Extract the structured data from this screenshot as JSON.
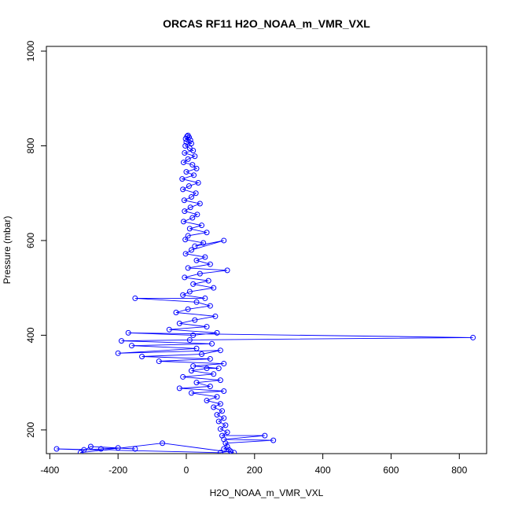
{
  "chart_data": {
    "type": "scatter",
    "title": "ORCAS RF11 H2O_NOAA_m_VMR_VXL",
    "xlabel": "H2O_NOAA_m_VMR_VXL",
    "ylabel": "Pressure (mbar)",
    "xlim": [
      -410,
      880
    ],
    "ylim": [
      1010,
      150
    ],
    "y_reversed": true,
    "grid": false,
    "marker": "open-circle",
    "connected": true,
    "x_ticks": [
      -400,
      -200,
      0,
      200,
      400,
      600,
      800
    ],
    "y_ticks": [
      200,
      400,
      600,
      800,
      1000
    ],
    "series_color": "#0000ff",
    "series": [
      {
        "points": [
          [
            5,
            822
          ],
          [
            2,
            820
          ],
          [
            8,
            818
          ],
          [
            -2,
            815
          ],
          [
            12,
            812
          ],
          [
            0,
            808
          ],
          [
            15,
            805
          ],
          [
            -3,
            800
          ],
          [
            10,
            795
          ],
          [
            20,
            790
          ],
          [
            -5,
            785
          ],
          [
            25,
            778
          ],
          [
            5,
            772
          ],
          [
            -8,
            765
          ],
          [
            18,
            760
          ],
          [
            30,
            752
          ],
          [
            0,
            745
          ],
          [
            22,
            738
          ],
          [
            -12,
            730
          ],
          [
            35,
            722
          ],
          [
            8,
            715
          ],
          [
            -10,
            708
          ],
          [
            28,
            700
          ],
          [
            15,
            692
          ],
          [
            -6,
            685
          ],
          [
            40,
            678
          ],
          [
            12,
            670
          ],
          [
            -5,
            662
          ],
          [
            32,
            655
          ],
          [
            18,
            648
          ],
          [
            -8,
            640
          ],
          [
            45,
            632
          ],
          [
            10,
            625
          ],
          [
            60,
            617
          ],
          [
            5,
            610
          ],
          [
            -3,
            602
          ],
          [
            50,
            595
          ],
          [
            25,
            588
          ],
          [
            110,
            600
          ],
          [
            15,
            580
          ],
          [
            -2,
            572
          ],
          [
            55,
            565
          ],
          [
            30,
            558
          ],
          [
            70,
            550
          ],
          [
            5,
            542
          ],
          [
            120,
            537
          ],
          [
            40,
            530
          ],
          [
            -5,
            522
          ],
          [
            65,
            515
          ],
          [
            20,
            508
          ],
          [
            80,
            500
          ],
          [
            10,
            492
          ],
          [
            -10,
            485
          ],
          [
            55,
            478
          ],
          [
            -150,
            478
          ],
          [
            30,
            470
          ],
          [
            70,
            462
          ],
          [
            5,
            455
          ],
          [
            -30,
            448
          ],
          [
            85,
            440
          ],
          [
            25,
            432
          ],
          [
            -20,
            425
          ],
          [
            60,
            418
          ],
          [
            -50,
            412
          ],
          [
            90,
            405
          ],
          [
            20,
            400
          ],
          [
            -170,
            405
          ],
          [
            840,
            395
          ],
          [
            10,
            390
          ],
          [
            -190,
            388
          ],
          [
            75,
            382
          ],
          [
            -160,
            378
          ],
          [
            30,
            372
          ],
          [
            -200,
            362
          ],
          [
            100,
            368
          ],
          [
            45,
            360
          ],
          [
            -130,
            355
          ],
          [
            70,
            350
          ],
          [
            -80,
            345
          ],
          [
            110,
            340
          ],
          [
            20,
            335
          ],
          [
            95,
            330
          ],
          [
            60,
            330
          ],
          [
            15,
            325
          ],
          [
            80,
            318
          ],
          [
            -10,
            312
          ],
          [
            100,
            305
          ],
          [
            30,
            300
          ],
          [
            70,
            292
          ],
          [
            -20,
            288
          ],
          [
            110,
            282
          ],
          [
            15,
            278
          ],
          [
            90,
            270
          ],
          [
            60,
            262
          ],
          [
            100,
            255
          ],
          [
            80,
            248
          ],
          [
            105,
            240
          ],
          [
            90,
            232
          ],
          [
            110,
            225
          ],
          [
            95,
            218
          ],
          [
            115,
            210
          ],
          [
            100,
            202
          ],
          [
            120,
            195
          ],
          [
            105,
            188
          ],
          [
            230,
            188
          ],
          [
            110,
            180
          ],
          [
            255,
            178
          ],
          [
            115,
            172
          ],
          [
            120,
            165
          ],
          [
            110,
            160
          ],
          [
            125,
            158
          ],
          [
            130,
            155
          ],
          [
            100,
            152
          ],
          [
            -380,
            160
          ],
          [
            -300,
            158
          ],
          [
            -250,
            160
          ],
          [
            -200,
            162
          ],
          [
            -150,
            160
          ],
          [
            -280,
            165
          ],
          [
            -310,
            152
          ],
          [
            -70,
            172
          ],
          [
            140,
            152
          ]
        ]
      }
    ]
  }
}
